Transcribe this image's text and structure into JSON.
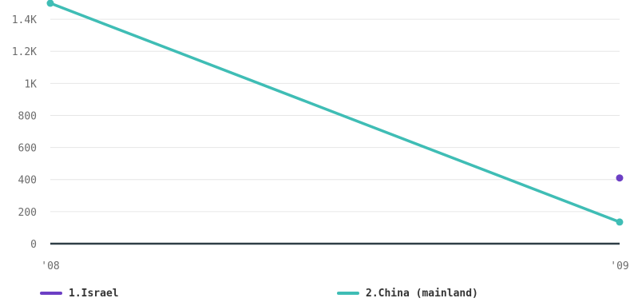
{
  "chart_data": {
    "type": "line",
    "x": [
      "'08",
      "'09"
    ],
    "series": [
      {
        "name": "1.Israel",
        "color": "#6c3fc4",
        "values": [
          null,
          410
        ]
      },
      {
        "name": "2.China (mainland)",
        "color": "#3fbdb5",
        "values": [
          1500,
          135
        ]
      }
    ],
    "yticks": [
      0,
      200,
      400,
      600,
      800,
      1000,
      1200,
      1400
    ],
    "ytick_labels": [
      "0",
      "200",
      "400",
      "600",
      "800",
      "1K",
      "1.2K",
      "1.4K"
    ],
    "ylim": [
      0,
      1520
    ],
    "grid": true,
    "legend_position": "bottom"
  }
}
